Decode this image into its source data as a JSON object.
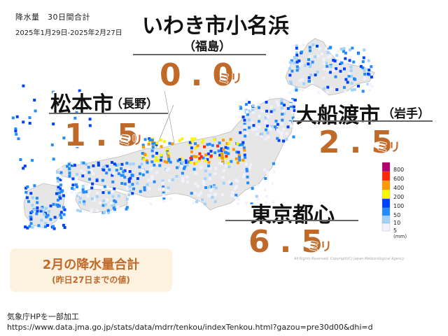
{
  "header": {
    "title": "降水量　30日間合計",
    "period": "2025年1月29日-2025年2月27日"
  },
  "locations": [
    {
      "name": "いわき市小名浜",
      "prefecture": "（福島）",
      "value": "0.0",
      "unit": "ミリ"
    },
    {
      "name": "松本市",
      "prefecture": "（長野）",
      "value": "1.5",
      "unit": "ミリ"
    },
    {
      "name": "大船渡市",
      "prefecture": "（岩手）",
      "value": "2.5",
      "unit": "ミリ"
    },
    {
      "name": "東京都心",
      "prefecture": "",
      "value": "6.5",
      "unit": "ミリ"
    }
  ],
  "legend": {
    "unit": "(mm)",
    "levels": [
      {
        "label": "800",
        "color": "#b4006e"
      },
      {
        "label": "600",
        "color": "#ff2800"
      },
      {
        "label": "400",
        "color": "#ff9900"
      },
      {
        "label": "200",
        "color": "#faf500"
      },
      {
        "label": "100",
        "color": "#0041ff"
      },
      {
        "label": "50",
        "color": "#218cff"
      },
      {
        "label": "10",
        "color": "#a0d2ff"
      },
      {
        "label": "5",
        "color": "#f2f2ff"
      }
    ]
  },
  "summary": {
    "title": "2月の降水量合計",
    "subtitle": "(昨日27日までの値)"
  },
  "copyright": "All Rights Reserved. Copyright(C) Japan Meteorological Agency",
  "source": {
    "credit": "気象庁HPを一部加工",
    "url": "https://www.data.jma.go.jp/stats/data/mdrr/tenkou/indexTenkou.html?gazou=pre30d00&dhi=d"
  },
  "colors": {
    "accent": "#c06a2a",
    "summary_bg": "#fdf1df"
  }
}
